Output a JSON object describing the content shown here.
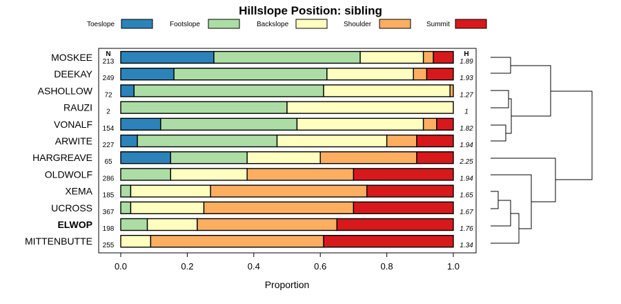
{
  "chart_data": {
    "type": "bar",
    "orientation": "horizontal",
    "stacked": true,
    "title": "Hillslope Position: sibling",
    "xlabel": "Proportion",
    "xlim": [
      0,
      1
    ],
    "x_ticks": [
      "0.0",
      "0.2",
      "0.4",
      "0.6",
      "0.8",
      "1.0"
    ],
    "legend": [
      "Toeslope",
      "Footslope",
      "Backslope",
      "Shoulder",
      "Summit"
    ],
    "legend_position": "top",
    "colors": [
      "#2b83ba",
      "#abdda4",
      "#ffffbf",
      "#fdae61",
      "#d7191c"
    ],
    "n_header": "N",
    "h_header": "H",
    "highlight": "ELWOP",
    "categories": [
      "MOSKEE",
      "DEEKAY",
      "ASHOLLOW",
      "RAUZI",
      "VONALF",
      "ARWITE",
      "HARGREAVE",
      "OLDWOLF",
      "XEMA",
      "UCROSS",
      "ELWOP",
      "MITTENBUTTE"
    ],
    "n": [
      "213",
      "249",
      "72",
      "2",
      "154",
      "227",
      "65",
      "286",
      "185",
      "367",
      "198",
      "255"
    ],
    "h": [
      "1.89",
      "1.93",
      "1.27",
      "1",
      "1.82",
      "1.94",
      "2.25",
      "1.94",
      "1.65",
      "1.67",
      "1.76",
      "1.34"
    ],
    "series": [
      {
        "name": "Toeslope",
        "values": [
          0.28,
          0.16,
          0.04,
          0.0,
          0.12,
          0.05,
          0.15,
          0.0,
          0.0,
          0.0,
          0.0,
          0.0
        ]
      },
      {
        "name": "Footslope",
        "values": [
          0.44,
          0.46,
          0.57,
          0.5,
          0.41,
          0.42,
          0.23,
          0.15,
          0.03,
          0.03,
          0.08,
          0.0
        ]
      },
      {
        "name": "Backslope",
        "values": [
          0.19,
          0.26,
          0.38,
          0.5,
          0.38,
          0.33,
          0.22,
          0.23,
          0.24,
          0.22,
          0.15,
          0.09
        ]
      },
      {
        "name": "Shoulder",
        "values": [
          0.03,
          0.04,
          0.01,
          0.0,
          0.04,
          0.09,
          0.29,
          0.32,
          0.47,
          0.45,
          0.42,
          0.52
        ]
      },
      {
        "name": "Summit",
        "values": [
          0.06,
          0.08,
          0.0,
          0.0,
          0.05,
          0.11,
          0.11,
          0.3,
          0.26,
          0.3,
          0.35,
          0.39
        ]
      }
    ]
  }
}
